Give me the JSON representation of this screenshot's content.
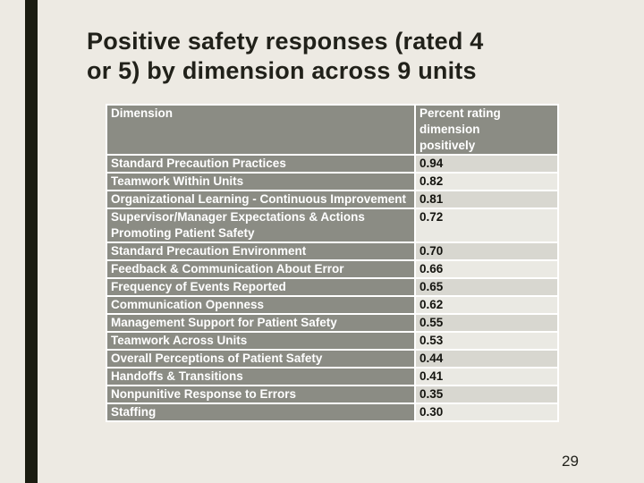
{
  "slide": {
    "title_lines": [
      "Positive safety responses (rated 4",
      "or 5) by dimension across 9 units"
    ],
    "page_number": "29"
  },
  "table": {
    "headers": [
      "Dimension",
      "Percent rating dimension positively"
    ],
    "rows": [
      {
        "dimension": "Standard Precaution Practices",
        "value": "0.94"
      },
      {
        "dimension": "Teamwork Within Units",
        "value": "0.82"
      },
      {
        "dimension": "Organizational Learning - Continuous Improvement",
        "value": "0.81"
      },
      {
        "dimension": "Supervisor/Manager Expectations & Actions Promoting Patient Safety",
        "value": "0.72"
      },
      {
        "dimension": "Standard Precaution Environment",
        "value": "0.70"
      },
      {
        "dimension": "Feedback & Communication About Error",
        "value": "0.66"
      },
      {
        "dimension": "Frequency of Events Reported",
        "value": "0.65"
      },
      {
        "dimension": "Communication Openness",
        "value": "0.62"
      },
      {
        "dimension": "Management Support for Patient Safety",
        "value": "0.55"
      },
      {
        "dimension": "Teamwork Across Units",
        "value": "0.53"
      },
      {
        "dimension": "Overall Perceptions of Patient Safety",
        "value": "0.44"
      },
      {
        "dimension": "Handoffs & Transitions",
        "value": "0.41"
      },
      {
        "dimension": "Nonpunitive Response to Errors",
        "value": "0.35"
      },
      {
        "dimension": "Staffing",
        "value": "0.30"
      }
    ]
  },
  "colors": {
    "slide_background": "#edeae3",
    "accent_bar": "#1b1c11",
    "table_header_gray": "#8b8c84",
    "value_cell_dark": "#d8d7d0",
    "value_cell_light": "#eae9e3",
    "title_text": "#21211a"
  }
}
